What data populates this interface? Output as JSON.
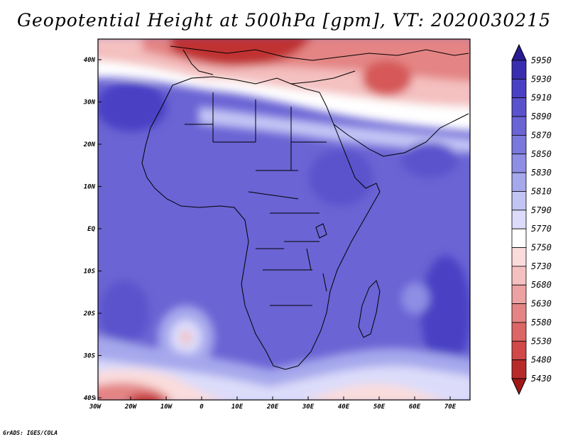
{
  "title": "Geopotential Height at 500hPa [gpm], VT: 2020030215",
  "credit": "GrADS: IGES/COLA",
  "map": {
    "type": "filled-contour",
    "variable": "Geopotential Height at 500hPa",
    "units": "gpm",
    "valid_time": "2020030215",
    "lon_range": [
      -30,
      75
    ],
    "lat_range": [
      -40,
      45
    ],
    "lon_ticks": [
      "30W",
      "20W",
      "10W",
      "0",
      "10E",
      "20E",
      "30E",
      "40E",
      "50E",
      "60E",
      "70E"
    ],
    "lat_ticks": [
      "40N",
      "30N",
      "20N",
      "10N",
      "EQ",
      "10S",
      "20S",
      "30S",
      "40S"
    ]
  },
  "colorbar": {
    "levels": [
      "5950",
      "5930",
      "5910",
      "5890",
      "5870",
      "5850",
      "5830",
      "5810",
      "5790",
      "5770",
      "5750",
      "5730",
      "5680",
      "5630",
      "5580",
      "5530",
      "5480",
      "5430"
    ],
    "colors": [
      "#2a1a96",
      "#3a2eb0",
      "#4a40c4",
      "#5a52cc",
      "#6a64d4",
      "#7a78dc",
      "#8e8ee4",
      "#a6a8ec",
      "#c2c4f4",
      "#dcdcfa",
      "#ffffff",
      "#fadcdc",
      "#f4c0c0",
      "#eca2a2",
      "#e48484",
      "#dc6666",
      "#d04848",
      "#b82a2a",
      "#a01818"
    ]
  }
}
